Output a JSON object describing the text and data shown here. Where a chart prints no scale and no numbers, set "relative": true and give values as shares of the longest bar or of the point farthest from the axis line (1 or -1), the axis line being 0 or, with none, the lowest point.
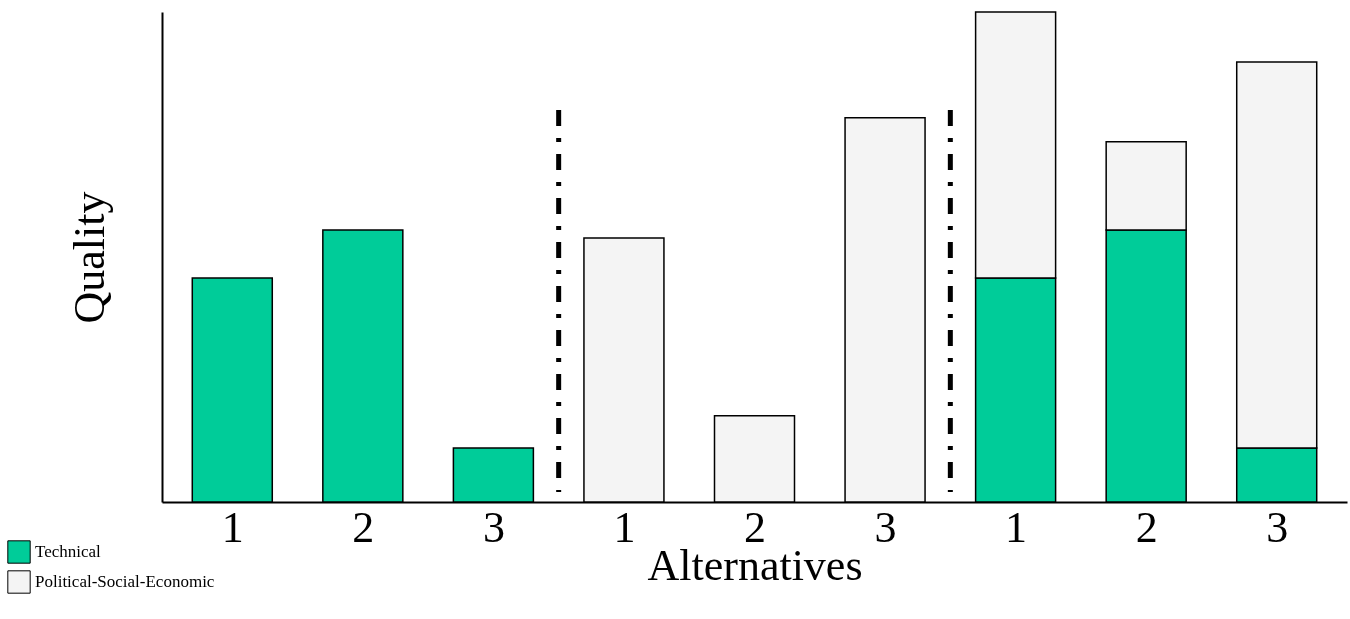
{
  "chart_data": {
    "type": "bar",
    "stacked": true,
    "relative": true,
    "xlabel": "Alternatives",
    "ylabel": "Quality",
    "categories": [
      "1",
      "2",
      "3",
      "1",
      "2",
      "3",
      "1",
      "2",
      "3"
    ],
    "series": [
      {
        "name": "Technical",
        "color": "#00cc99",
        "values": [
          0.457,
          0.555,
          0.11,
          null,
          null,
          null,
          0.457,
          0.555,
          0.11
        ]
      },
      {
        "name": "Political-Social-Economic",
        "color": "#f4f4f4",
        "values": [
          null,
          null,
          null,
          0.539,
          0.176,
          0.784,
          0.543,
          0.18,
          0.788
        ]
      }
    ],
    "legend": "bottom left",
    "grid": false
  }
}
